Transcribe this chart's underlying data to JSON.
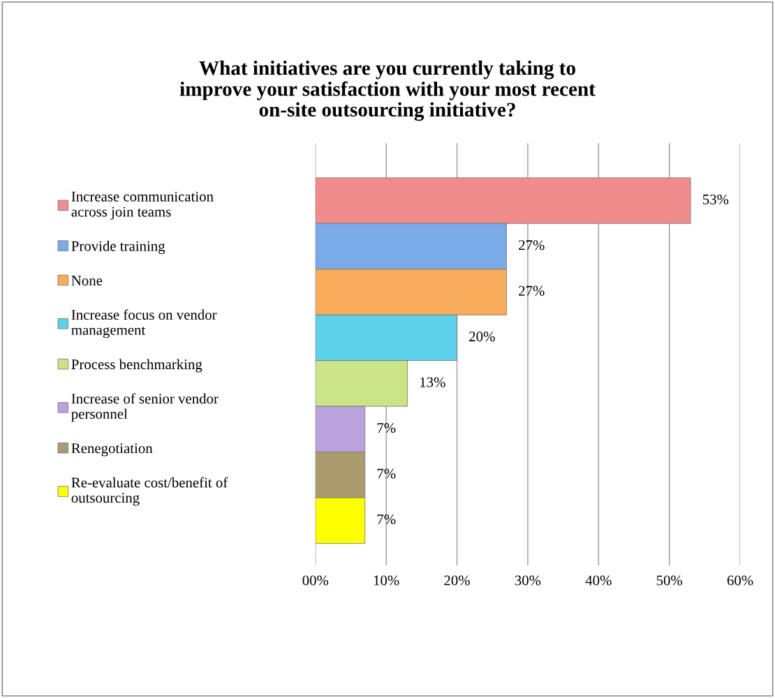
{
  "chart_data": {
    "type": "bar",
    "orientation": "horizontal",
    "title": "What initiatives are you currently taking to\nimprove your satisfaction with your most recent\non-site outsourcing initiative?",
    "categories": [
      null,
      null,
      null,
      null,
      null,
      null,
      null,
      null
    ],
    "series": [
      {
        "name": "Increase communication\nacross join teams",
        "color": "#f08c8c",
        "values": [
          53,
          null,
          null,
          null,
          null,
          null,
          null,
          null
        ],
        "value_labels": [
          "53%",
          null,
          null,
          null,
          null,
          null,
          null,
          null
        ]
      },
      {
        "name": "Provide training",
        "color": "#7aaae8",
        "values": [
          null,
          27,
          null,
          null,
          null,
          null,
          null,
          null
        ],
        "value_labels": [
          null,
          "27%",
          null,
          null,
          null,
          null,
          null,
          null
        ]
      },
      {
        "name": "None",
        "color": "#f8ac5c",
        "values": [
          null,
          null,
          27,
          null,
          null,
          null,
          null,
          null
        ],
        "value_labels": [
          null,
          null,
          "27%",
          null,
          null,
          null,
          null,
          null
        ]
      },
      {
        "name": "Increase focus on vendor\nmanagement",
        "color": "#5cd0e8",
        "values": [
          null,
          null,
          null,
          20,
          null,
          null,
          null,
          null
        ],
        "value_labels": [
          null,
          null,
          null,
          "20%",
          null,
          null,
          null,
          null
        ]
      },
      {
        "name": "Process benchmarking",
        "color": "#cce488",
        "values": [
          null,
          null,
          null,
          null,
          13,
          null,
          null,
          null
        ],
        "value_labels": [
          null,
          null,
          null,
          null,
          "13%",
          null,
          null,
          null
        ]
      },
      {
        "name": "Increase of senior vendor\npersonnel",
        "color": "#bca2dc",
        "values": [
          null,
          null,
          null,
          null,
          null,
          7,
          null,
          null
        ],
        "value_labels": [
          null,
          null,
          null,
          null,
          null,
          "7%",
          null,
          null
        ]
      },
      {
        "name": "Renegotiation",
        "color": "#aa9c6c",
        "values": [
          null,
          null,
          null,
          null,
          null,
          null,
          7,
          null
        ],
        "value_labels": [
          null,
          null,
          null,
          null,
          null,
          null,
          "7%",
          null
        ]
      },
      {
        "name": "Re-evaluate cost/benefit of\noutsourcing",
        "color": "#ffff00",
        "values": [
          null,
          null,
          null,
          null,
          null,
          null,
          null,
          7
        ],
        "value_labels": [
          null,
          null,
          null,
          null,
          null,
          null,
          null,
          "7%"
        ]
      }
    ],
    "xlim": [
      0,
      60
    ],
    "xticks": [
      {
        "value": 0,
        "label": "00%"
      },
      {
        "value": 10,
        "label": "10%"
      },
      {
        "value": 20,
        "label": "20%"
      },
      {
        "value": 30,
        "label": "30%"
      },
      {
        "value": 40,
        "label": "40%"
      },
      {
        "value": 50,
        "label": "50%"
      },
      {
        "value": 60,
        "label": "60%"
      }
    ],
    "stacked": true,
    "grid": "x",
    "legend": "left"
  }
}
